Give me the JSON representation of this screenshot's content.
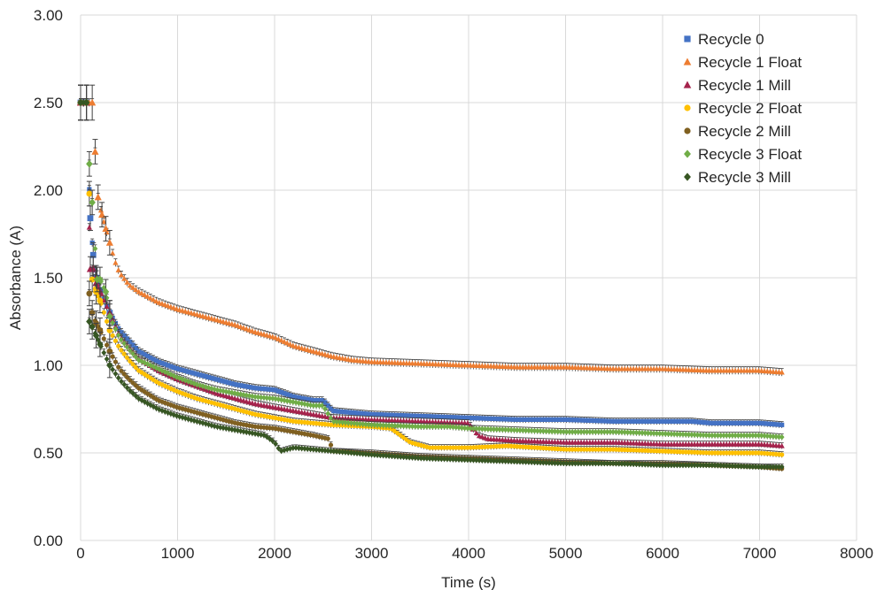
{
  "chart_data": {
    "type": "scatter",
    "title": "",
    "xlabel": "Time (s)",
    "ylabel": "Absorbance (A)",
    "xlim": [
      0,
      8000
    ],
    "ylim": [
      0,
      3.0
    ],
    "x_ticks": [
      "0",
      "1000",
      "2000",
      "3000",
      "4000",
      "5000",
      "6000",
      "7000",
      "8000"
    ],
    "y_ticks": [
      "0.00",
      "0.50",
      "1.00",
      "1.50",
      "2.00",
      "2.50",
      "3.00"
    ],
    "grid": true,
    "error_bars": true,
    "legend_position": "top-right",
    "series": [
      {
        "name": "Recycle 0",
        "color": "#4472C4",
        "marker": "square",
        "points": [
          [
            0,
            2.5
          ],
          [
            60,
            2.5
          ],
          [
            100,
            1.84
          ],
          [
            130,
            1.63
          ],
          [
            160,
            1.5
          ],
          [
            200,
            1.43
          ],
          [
            300,
            1.3
          ],
          [
            400,
            1.2
          ],
          [
            500,
            1.14
          ],
          [
            600,
            1.08
          ],
          [
            800,
            1.02
          ],
          [
            1000,
            0.98
          ],
          [
            1200,
            0.95
          ],
          [
            1400,
            0.92
          ],
          [
            1600,
            0.89
          ],
          [
            1800,
            0.87
          ],
          [
            2000,
            0.86
          ],
          [
            2200,
            0.82
          ],
          [
            2400,
            0.8
          ],
          [
            2500,
            0.8
          ],
          [
            2600,
            0.74
          ],
          [
            3000,
            0.72
          ],
          [
            3500,
            0.71
          ],
          [
            4000,
            0.7
          ],
          [
            4500,
            0.69
          ],
          [
            5000,
            0.69
          ],
          [
            5500,
            0.68
          ],
          [
            6000,
            0.68
          ],
          [
            6300,
            0.68
          ],
          [
            6500,
            0.67
          ],
          [
            7000,
            0.67
          ],
          [
            7230,
            0.66
          ]
        ]
      },
      {
        "name": "Recycle 1 Float",
        "color": "#ED7D31",
        "marker": "triangle",
        "points": [
          [
            0,
            2.5
          ],
          [
            60,
            2.5
          ],
          [
            120,
            2.5
          ],
          [
            150,
            2.22
          ],
          [
            180,
            1.96
          ],
          [
            220,
            1.86
          ],
          [
            260,
            1.78
          ],
          [
            300,
            1.7
          ],
          [
            350,
            1.6
          ],
          [
            400,
            1.53
          ],
          [
            500,
            1.46
          ],
          [
            600,
            1.42
          ],
          [
            700,
            1.39
          ],
          [
            800,
            1.36
          ],
          [
            1000,
            1.32
          ],
          [
            1200,
            1.29
          ],
          [
            1400,
            1.26
          ],
          [
            1600,
            1.23
          ],
          [
            1800,
            1.19
          ],
          [
            2000,
            1.16
          ],
          [
            2200,
            1.11
          ],
          [
            2400,
            1.08
          ],
          [
            2600,
            1.05
          ],
          [
            2800,
            1.03
          ],
          [
            3000,
            1.02
          ],
          [
            3500,
            1.01
          ],
          [
            4000,
            1.0
          ],
          [
            4500,
            0.99
          ],
          [
            5000,
            0.99
          ],
          [
            5500,
            0.98
          ],
          [
            6000,
            0.98
          ],
          [
            6500,
            0.97
          ],
          [
            7000,
            0.97
          ],
          [
            7230,
            0.96
          ]
        ]
      },
      {
        "name": "Recycle 1 Mill",
        "color": "#A5234C",
        "marker": "triangle",
        "points": [
          [
            0,
            2.5
          ],
          [
            60,
            2.5
          ],
          [
            100,
            1.55
          ],
          [
            130,
            1.55
          ],
          [
            160,
            1.47
          ],
          [
            200,
            1.42
          ],
          [
            300,
            1.3
          ],
          [
            400,
            1.17
          ],
          [
            500,
            1.1
          ],
          [
            600,
            1.04
          ],
          [
            800,
            0.97
          ],
          [
            1000,
            0.92
          ],
          [
            1200,
            0.88
          ],
          [
            1400,
            0.84
          ],
          [
            1600,
            0.81
          ],
          [
            1800,
            0.78
          ],
          [
            2000,
            0.76
          ],
          [
            2200,
            0.74
          ],
          [
            2400,
            0.72
          ],
          [
            2600,
            0.7
          ],
          [
            3000,
            0.69
          ],
          [
            3500,
            0.68
          ],
          [
            4000,
            0.67
          ],
          [
            4100,
            0.6
          ],
          [
            4200,
            0.58
          ],
          [
            4500,
            0.57
          ],
          [
            5000,
            0.56
          ],
          [
            5500,
            0.56
          ],
          [
            6000,
            0.55
          ],
          [
            6500,
            0.55
          ],
          [
            7000,
            0.55
          ],
          [
            7230,
            0.54
          ]
        ]
      },
      {
        "name": "Recycle 2 Float",
        "color": "#FFC000",
        "marker": "circle",
        "points": [
          [
            0,
            2.5
          ],
          [
            60,
            2.5
          ],
          [
            90,
            1.98
          ],
          [
            120,
            1.49
          ],
          [
            160,
            1.42
          ],
          [
            200,
            1.37
          ],
          [
            300,
            1.2
          ],
          [
            400,
            1.1
          ],
          [
            500,
            1.03
          ],
          [
            600,
            0.97
          ],
          [
            800,
            0.9
          ],
          [
            1000,
            0.85
          ],
          [
            1200,
            0.81
          ],
          [
            1400,
            0.78
          ],
          [
            1600,
            0.75
          ],
          [
            1800,
            0.72
          ],
          [
            2000,
            0.7
          ],
          [
            2200,
            0.68
          ],
          [
            2400,
            0.67
          ],
          [
            2600,
            0.66
          ],
          [
            3000,
            0.65
          ],
          [
            3200,
            0.64
          ],
          [
            3400,
            0.56
          ],
          [
            3600,
            0.53
          ],
          [
            4000,
            0.53
          ],
          [
            4400,
            0.54
          ],
          [
            5000,
            0.52
          ],
          [
            5500,
            0.52
          ],
          [
            6000,
            0.51
          ],
          [
            6500,
            0.5
          ],
          [
            7000,
            0.5
          ],
          [
            7230,
            0.49
          ]
        ]
      },
      {
        "name": "Recycle 2 Mill",
        "color": "#806020",
        "marker": "circle",
        "points": [
          [
            0,
            2.5
          ],
          [
            60,
            2.5
          ],
          [
            90,
            1.41
          ],
          [
            120,
            1.3
          ],
          [
            160,
            1.24
          ],
          [
            200,
            1.2
          ],
          [
            300,
            1.08
          ],
          [
            400,
            0.98
          ],
          [
            500,
            0.92
          ],
          [
            600,
            0.87
          ],
          [
            800,
            0.8
          ],
          [
            1000,
            0.76
          ],
          [
            1200,
            0.73
          ],
          [
            1400,
            0.7
          ],
          [
            1600,
            0.67
          ],
          [
            1800,
            0.65
          ],
          [
            2000,
            0.64
          ],
          [
            2200,
            0.62
          ],
          [
            2400,
            0.6
          ],
          [
            2560,
            0.58
          ],
          [
            2600,
            0.51
          ],
          [
            3000,
            0.5
          ],
          [
            3500,
            0.48
          ],
          [
            4000,
            0.47
          ],
          [
            4500,
            0.46
          ],
          [
            5000,
            0.45
          ],
          [
            5500,
            0.44
          ],
          [
            6000,
            0.44
          ],
          [
            6500,
            0.43
          ],
          [
            7000,
            0.42
          ],
          [
            7230,
            0.41
          ]
        ]
      },
      {
        "name": "Recycle 3 Float",
        "color": "#70AD47",
        "marker": "diamond",
        "points": [
          [
            0,
            2.5
          ],
          [
            60,
            2.5
          ],
          [
            90,
            2.15
          ],
          [
            120,
            1.93
          ],
          [
            170,
            1.49
          ],
          [
            200,
            1.49
          ],
          [
            260,
            1.42
          ],
          [
            300,
            1.28
          ],
          [
            400,
            1.16
          ],
          [
            500,
            1.09
          ],
          [
            600,
            1.03
          ],
          [
            800,
            0.98
          ],
          [
            1000,
            0.93
          ],
          [
            1200,
            0.89
          ],
          [
            1400,
            0.86
          ],
          [
            1600,
            0.84
          ],
          [
            1800,
            0.82
          ],
          [
            2000,
            0.81
          ],
          [
            2200,
            0.79
          ],
          [
            2400,
            0.77
          ],
          [
            2500,
            0.77
          ],
          [
            2600,
            0.68
          ],
          [
            3000,
            0.66
          ],
          [
            3500,
            0.65
          ],
          [
            3800,
            0.65
          ],
          [
            4000,
            0.64
          ],
          [
            4500,
            0.63
          ],
          [
            5000,
            0.62
          ],
          [
            5500,
            0.62
          ],
          [
            6000,
            0.61
          ],
          [
            6500,
            0.6
          ],
          [
            7000,
            0.6
          ],
          [
            7230,
            0.59
          ]
        ]
      },
      {
        "name": "Recycle 3 Mill",
        "color": "#375623",
        "marker": "diamond",
        "points": [
          [
            0,
            2.5
          ],
          [
            60,
            2.5
          ],
          [
            90,
            1.25
          ],
          [
            120,
            1.22
          ],
          [
            160,
            1.17
          ],
          [
            200,
            1.12
          ],
          [
            300,
            1.0
          ],
          [
            400,
            0.92
          ],
          [
            500,
            0.86
          ],
          [
            600,
            0.81
          ],
          [
            800,
            0.75
          ],
          [
            1000,
            0.71
          ],
          [
            1200,
            0.68
          ],
          [
            1400,
            0.65
          ],
          [
            1600,
            0.63
          ],
          [
            1800,
            0.61
          ],
          [
            1900,
            0.6
          ],
          [
            2000,
            0.56
          ],
          [
            2060,
            0.51
          ],
          [
            2200,
            0.53
          ],
          [
            2400,
            0.52
          ],
          [
            2600,
            0.51
          ],
          [
            3000,
            0.49
          ],
          [
            3500,
            0.47
          ],
          [
            4000,
            0.46
          ],
          [
            4500,
            0.45
          ],
          [
            5000,
            0.44
          ],
          [
            5500,
            0.44
          ],
          [
            6000,
            0.43
          ],
          [
            6500,
            0.43
          ],
          [
            7000,
            0.42
          ],
          [
            7230,
            0.42
          ]
        ]
      }
    ]
  }
}
